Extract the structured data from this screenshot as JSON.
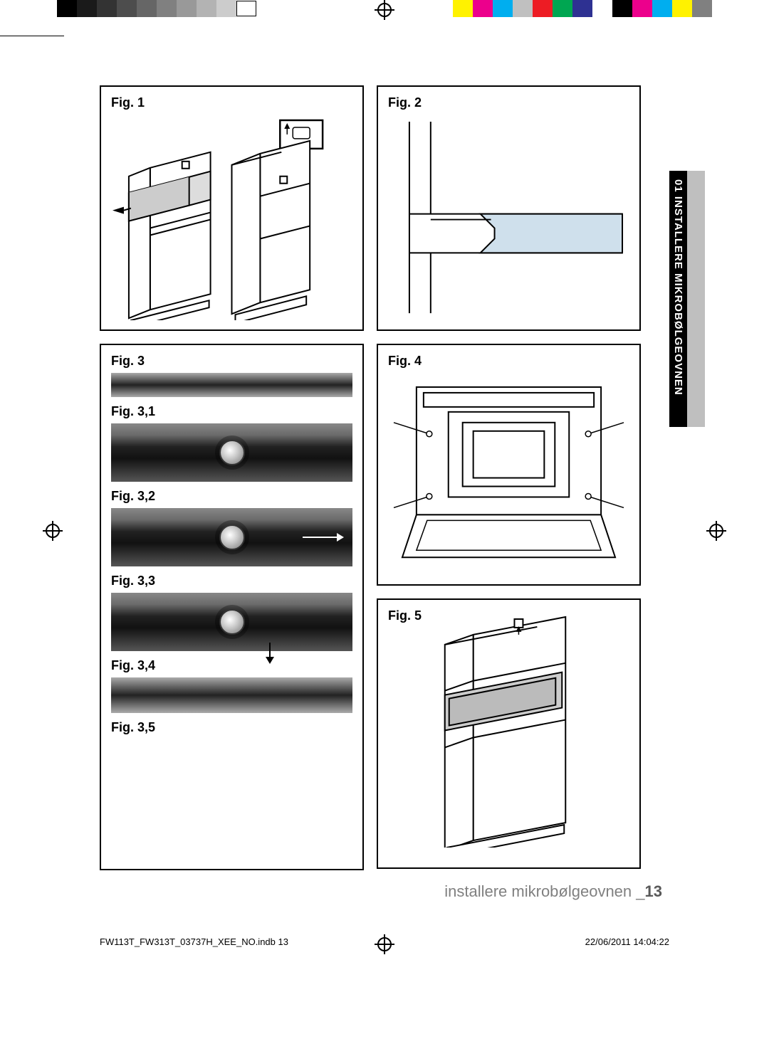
{
  "printer": {
    "greys": [
      "#000000",
      "#1a1a1a",
      "#333333",
      "#4d4d4d",
      "#666666",
      "#808080",
      "#999999",
      "#b3b3b3",
      "#cccccc",
      "#ffffff"
    ],
    "colors": [
      "#fff200",
      "#ec008c",
      "#00aeef",
      "#c0c0c0",
      "#ed1c24",
      "#00a651",
      "#2e3192",
      "#ffffff",
      "#000000",
      "#ec008c",
      "#00aeef",
      "#fff200",
      "#808080"
    ]
  },
  "figures": {
    "f1": "Fig. 1",
    "f2": "Fig. 2",
    "f3": "Fig. 3",
    "f31": "Fig. 3,1",
    "f32": "Fig. 3,2",
    "f33": "Fig. 3,3",
    "f34": "Fig. 3,4",
    "f35": "Fig. 3,5",
    "f4": "Fig. 4",
    "f5": "Fig. 5"
  },
  "sideTab": "01 INSTALLERE MIKROBØLGEOVNEN",
  "footer": {
    "text": "installere mikrobølgeovnen _",
    "page": "13"
  },
  "imprint": {
    "file": "FW113T_FW313T_03737H_XEE_NO.indb   13",
    "datetime": "22/06/2011   14:04:22"
  },
  "style": {
    "panel_border": "#000000",
    "fig2_fill": "#cfe0ec",
    "fig_label_fontsize": 18,
    "footer_fontsize": 22,
    "footer_color": "#808080"
  }
}
